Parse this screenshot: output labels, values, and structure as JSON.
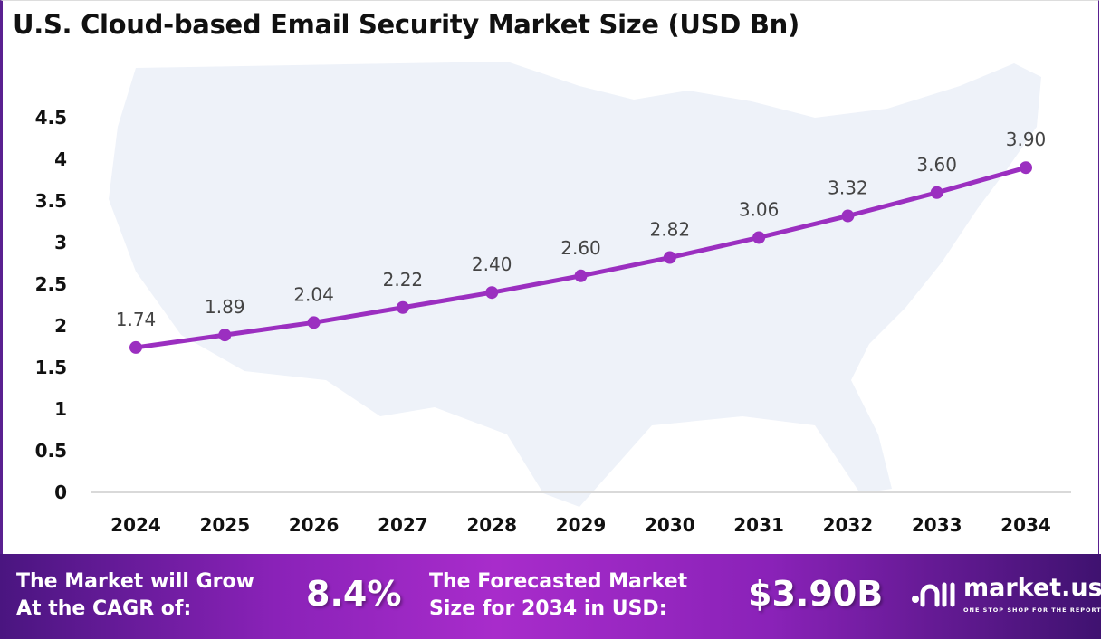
{
  "chart_data": {
    "type": "line",
    "title": "U.S. Cloud-based Email Security Market Size (USD Bn)",
    "categories": [
      "2024",
      "2025",
      "2026",
      "2027",
      "2028",
      "2029",
      "2030",
      "2031",
      "2032",
      "2033",
      "2034"
    ],
    "values": [
      1.74,
      1.89,
      2.04,
      2.22,
      2.4,
      2.6,
      2.82,
      3.06,
      3.32,
      3.6,
      3.9
    ],
    "data_labels": [
      "1.74",
      "1.89",
      "2.04",
      "2.22",
      "2.40",
      "2.60",
      "2.82",
      "3.06",
      "3.32",
      "3.60",
      "3.90"
    ],
    "yticks": [
      "0",
      "0.5",
      "1",
      "1.5",
      "2",
      "2.5",
      "3",
      "3.5",
      "4",
      "4.5"
    ],
    "ylim": [
      0,
      4.5
    ],
    "grid": false,
    "line_color": "#9b2fc0",
    "xlabel": "",
    "ylabel": ""
  },
  "footer": {
    "cagr_label_1": "The Market will Grow",
    "cagr_label_2": "At the CAGR of:",
    "cagr_value": "8.4%",
    "forecast_label_1": "The Forecasted Market",
    "forecast_label_2": "Size for 2034 in USD:",
    "forecast_value": "$3.90B",
    "logo_name": "market.us",
    "logo_tagline": "ONE STOP SHOP FOR THE REPORTS"
  }
}
